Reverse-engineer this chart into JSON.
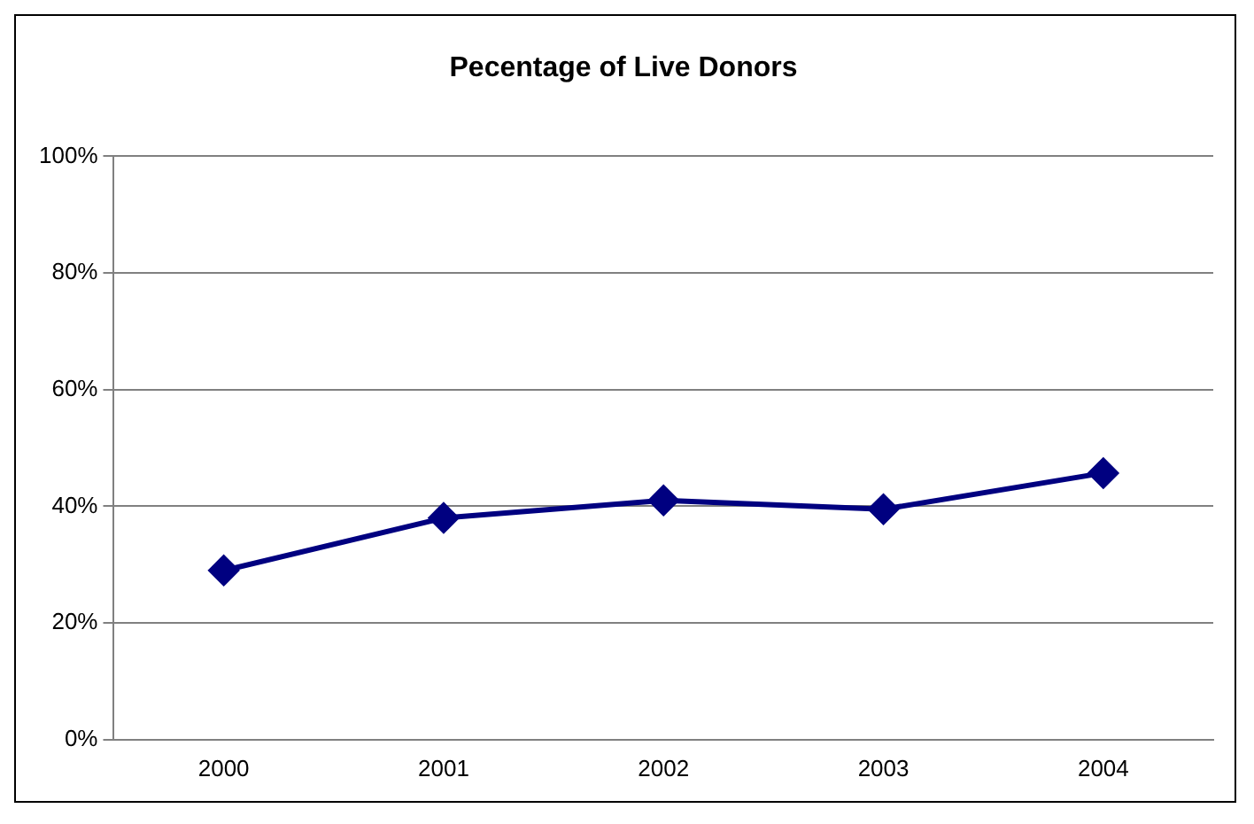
{
  "chart_data": {
    "type": "line",
    "title": "Pecentage of Live Donors",
    "categories": [
      "2000",
      "2001",
      "2002",
      "2003",
      "2004"
    ],
    "series": [
      {
        "color": "#000080",
        "values": [
          29,
          38,
          41,
          39.5,
          45.7
        ]
      }
    ],
    "ylim": [
      0,
      100
    ],
    "yticks": [
      {
        "value": 0,
        "label": "0%"
      },
      {
        "value": 20,
        "label": "20%"
      },
      {
        "value": 40,
        "label": "40%"
      },
      {
        "value": 60,
        "label": "60%"
      },
      {
        "value": 80,
        "label": "80%"
      },
      {
        "value": 100,
        "label": "100%"
      }
    ],
    "grid": "y",
    "legend": false,
    "marker": "diamond",
    "line_style": "solid"
  }
}
